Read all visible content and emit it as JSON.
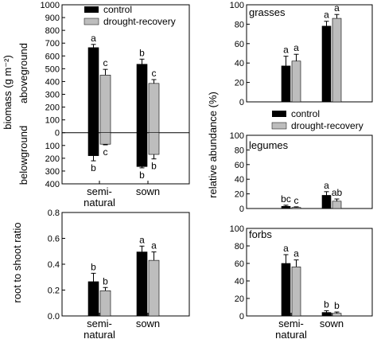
{
  "colors": {
    "control": "#000000",
    "drought_recovery": "#bdbdbd",
    "axis": "#000000"
  },
  "chart_data": [
    {
      "id": "biomass",
      "type": "bar",
      "title": "",
      "ylabel_main": "biomass (g m⁻²)",
      "ylabel_above": "aboveground",
      "ylabel_below": "belowground",
      "categories": [
        "semi-natural",
        "sown"
      ],
      "category_labels": [
        [
          "semi-",
          "natural"
        ],
        [
          "sown"
        ]
      ],
      "ylim": [
        -400,
        1000
      ],
      "yticks": [
        -400,
        -300,
        -200,
        -100,
        0,
        100,
        200,
        300,
        400,
        500,
        600,
        700,
        800,
        900,
        1000
      ],
      "ytick_labels": [
        "400",
        "300",
        "200",
        "100",
        "0",
        "100",
        "200",
        "300",
        "400",
        "500",
        "600",
        "700",
        "800",
        "900",
        "1000"
      ],
      "zero_line": true,
      "legend": {
        "position": "top",
        "entries": [
          "control",
          "drought-recovery"
        ]
      },
      "series": [
        {
          "name": "control",
          "above": [
            665,
            535
          ],
          "above_err": [
            25,
            40
          ],
          "above_letters": [
            "a",
            "b"
          ],
          "below": [
            -180,
            -265
          ],
          "below_err": [
            40,
            10
          ],
          "below_letters": [
            "b",
            "b"
          ]
        },
        {
          "name": "drought-recovery",
          "above": [
            450,
            385
          ],
          "above_err": [
            45,
            30
          ],
          "above_letters": [
            "c",
            "c"
          ],
          "below": [
            -90,
            -170
          ],
          "below_err": [
            5,
            35
          ],
          "below_letters": [
            "c",
            "b"
          ]
        }
      ]
    },
    {
      "id": "root-shoot",
      "type": "bar",
      "title": "",
      "ylabel": "root to shoot ratio",
      "categories": [
        "semi-natural",
        "sown"
      ],
      "category_labels": [
        [
          "semi-",
          "natural"
        ],
        [
          "sown"
        ]
      ],
      "ylim": [
        0,
        0.8
      ],
      "yticks": [
        0.0,
        0.2,
        0.4,
        0.6,
        0.8
      ],
      "ytick_labels": [
        "0.0",
        "0.2",
        "0.4",
        "0.6",
        "0.8"
      ],
      "series": [
        {
          "name": "control",
          "values": [
            0.265,
            0.495
          ],
          "err": [
            0.065,
            0.045
          ],
          "letters": [
            "b",
            "a"
          ]
        },
        {
          "name": "drought-recovery",
          "values": [
            0.195,
            0.43
          ],
          "err": [
            0.025,
            0.065
          ],
          "letters": [
            "b",
            "a"
          ]
        }
      ]
    },
    {
      "id": "grasses",
      "type": "bar",
      "panel_label": "grasses",
      "categories": [
        "semi-natural",
        "sown"
      ],
      "ylim": [
        0,
        100
      ],
      "yticks": [
        0,
        20,
        40,
        60,
        80,
        100
      ],
      "ytick_labels": [
        "0",
        "20",
        "40",
        "60",
        "80",
        "100"
      ],
      "series": [
        {
          "name": "control",
          "values": [
            37,
            78
          ],
          "err": [
            10,
            5
          ],
          "letters": [
            "a",
            "a"
          ]
        },
        {
          "name": "drought-recovery",
          "values": [
            42,
            86
          ],
          "err": [
            7,
            4
          ],
          "letters": [
            "a",
            "a"
          ]
        }
      ]
    },
    {
      "id": "legumes",
      "type": "bar",
      "panel_label": "legumes",
      "categories": [
        "semi-natural",
        "sown"
      ],
      "ylim": [
        0,
        100
      ],
      "yticks": [
        0,
        20,
        40,
        60,
        80,
        100
      ],
      "ytick_labels": [
        "0",
        "20",
        "40",
        "60",
        "80",
        "100"
      ],
      "legend": {
        "position": "top",
        "entries": [
          "control",
          "drought-recovery"
        ]
      },
      "series": [
        {
          "name": "control",
          "values": [
            3,
            18
          ],
          "err": [
            1.5,
            5
          ],
          "letters": [
            "bc",
            "a"
          ]
        },
        {
          "name": "drought-recovery",
          "values": [
            1.5,
            10
          ],
          "err": [
            0.8,
            3
          ],
          "letters": [
            "c",
            "ab"
          ]
        }
      ]
    },
    {
      "id": "forbs",
      "type": "bar",
      "panel_label": "forbs",
      "categories": [
        "semi-natural",
        "sown"
      ],
      "category_labels": [
        [
          "semi-",
          "natural"
        ],
        [
          "sown"
        ]
      ],
      "ylim": [
        0,
        100
      ],
      "yticks": [
        0,
        20,
        40,
        60,
        80,
        100
      ],
      "ytick_labels": [
        "0",
        "20",
        "40",
        "60",
        "80",
        "100"
      ],
      "series": [
        {
          "name": "control",
          "values": [
            60,
            4
          ],
          "err": [
            10,
            2
          ],
          "letters": [
            "a",
            "b"
          ]
        },
        {
          "name": "drought-recovery",
          "values": [
            56,
            3
          ],
          "err": [
            8,
            1.5
          ],
          "letters": [
            "a",
            "b"
          ]
        }
      ]
    }
  ],
  "shared_ylabel_right": "relative abundance (%)"
}
